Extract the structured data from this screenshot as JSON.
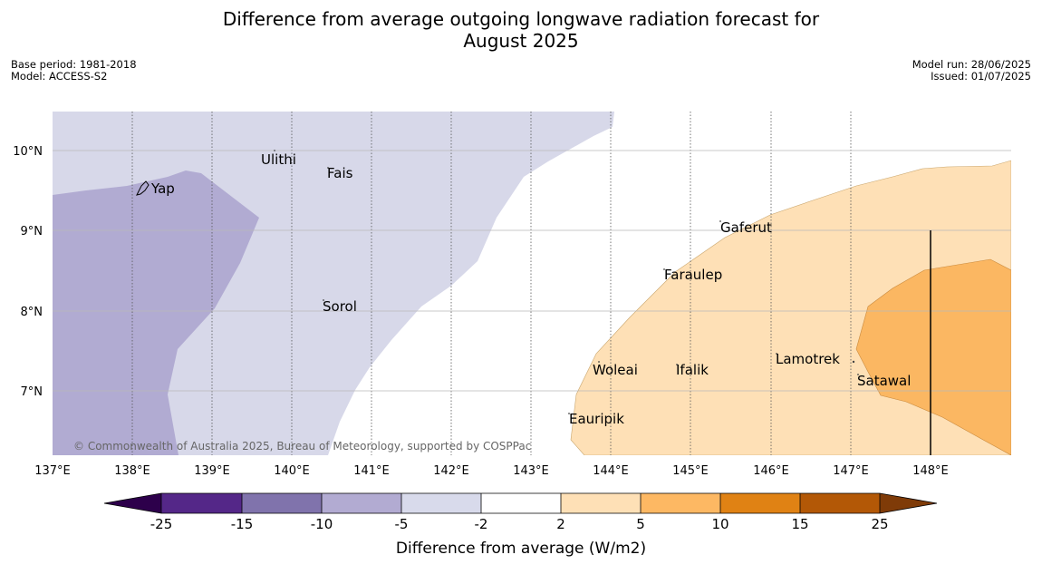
{
  "title_line1": "Difference from average outgoing longwave radiation forecast for",
  "title_line2": "August 2025",
  "meta_left": {
    "base_period": "Base period: 1981-2018",
    "model": "Model: ACCESS-S2"
  },
  "meta_right": {
    "model_run": "Model run: 28/06/2025",
    "issued": "Issued: 01/07/2025"
  },
  "map": {
    "lon_ticks": [
      "137°E",
      "138°E",
      "139°E",
      "140°E",
      "141°E",
      "142°E",
      "143°E",
      "144°E",
      "145°E",
      "146°E",
      "147°E",
      "148°E"
    ],
    "lat_ticks": [
      "10°N",
      "9°N",
      "8°N",
      "7°N"
    ],
    "copyright": "© Commonwealth of Australia 2025, Bureau of Meteorology, supported by COSPPac",
    "places": {
      "yap": "Yap",
      "ulithi": "Ulithi",
      "fais": "Fais",
      "sorol": "Sorol",
      "gaferut": "Gaferut",
      "faraulep": "Faraulep",
      "woleai": "Woleai",
      "ifalik": "Ifalik",
      "lamotrek": "Lamotrek",
      "satawal": "Satawal",
      "eauripik": "Eauripik"
    },
    "colors": {
      "neg_10_5": "#b1abd2",
      "neg_5_2": "#d7d8e9",
      "pos_2_5": "#fee0b6",
      "pos_5_10": "#fbb762"
    }
  },
  "colorbar": {
    "label": "Difference from average (W/m2)",
    "ticks": [
      "-25",
      "-15",
      "-10",
      "-5",
      "-2",
      "2",
      "5",
      "10",
      "15",
      "25"
    ],
    "colors": [
      "#2d004b",
      "#542788",
      "#8073ac",
      "#b2abd2",
      "#d8daeb",
      "#ffffff",
      "#fee0b6",
      "#fdb863",
      "#e08214",
      "#b35806",
      "#7f3b08"
    ]
  }
}
